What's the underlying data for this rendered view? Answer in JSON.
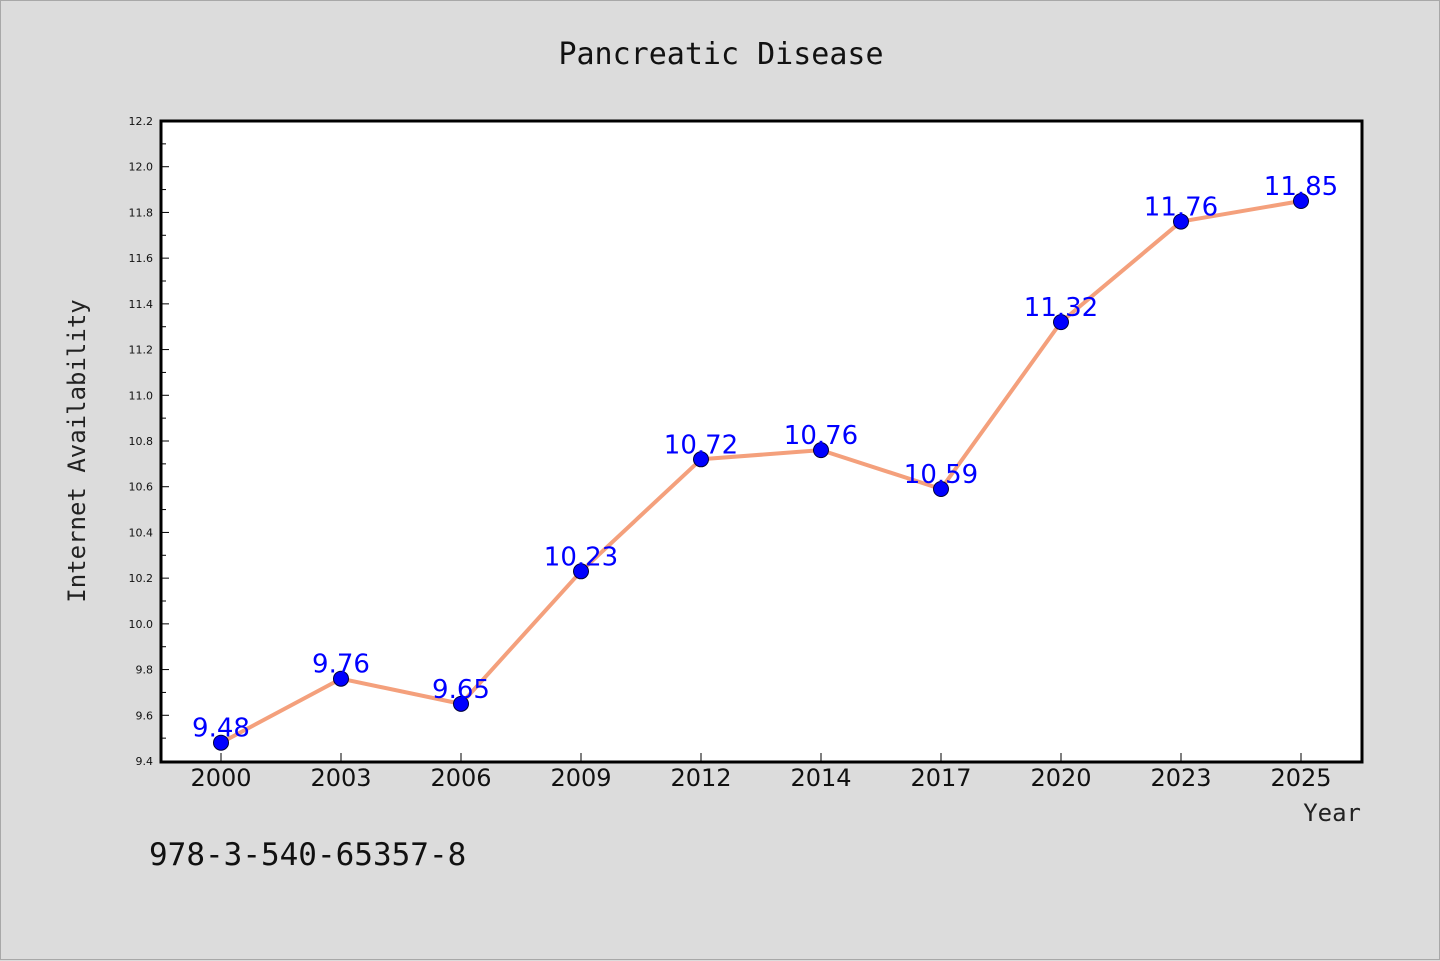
{
  "chart_data": {
    "type": "line",
    "title": "Pancreatic Disease",
    "xlabel": "Year",
    "ylabel": "Internet Availability",
    "categories": [
      "2000",
      "2003",
      "2006",
      "2009",
      "2012",
      "2014",
      "2017",
      "2020",
      "2023",
      "2025"
    ],
    "series": [
      {
        "values": [
          9.48,
          9.76,
          9.65,
          10.23,
          10.72,
          10.76,
          10.59,
          11.32,
          11.76,
          11.85
        ],
        "line_color": "#f4a07c",
        "marker_color": "#0000ff"
      }
    ],
    "data_labels": [
      "9.48",
      "9.76",
      "9.65",
      "10.23",
      "10.72",
      "10.76",
      "10.59",
      "11.32",
      "11.76",
      "11.85"
    ],
    "ylim": [
      9.4,
      12.2
    ],
    "yticks": [
      "9.4",
      "9.6",
      "9.8",
      "10.0",
      "10.2",
      "10.4",
      "10.6",
      "10.8",
      "11.0",
      "11.2",
      "11.4",
      "11.6",
      "11.8",
      "12.0",
      "12.2"
    ],
    "grid": false,
    "legend": "none"
  },
  "footnote": "978-3-540-65357-8",
  "colors": {
    "background": "#dcdcdc",
    "plot_background": "#ffffff",
    "line": "#f4a07c",
    "marker": "#0000ff",
    "data_label": "#0000ff"
  }
}
